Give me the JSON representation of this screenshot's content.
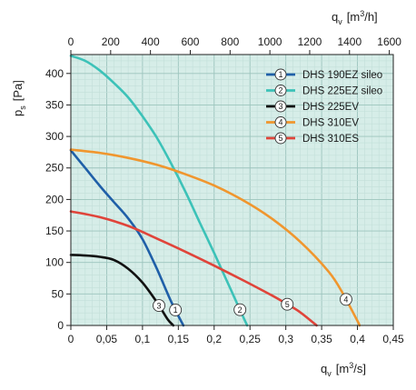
{
  "chart_data": {
    "type": "line",
    "x": {
      "label_main": "q",
      "label_sub": "v",
      "label_unit_pre": "[m",
      "label_unit_sup": "3",
      "label_unit_post": "/s]",
      "range": [
        0,
        0.45
      ],
      "ticks": [
        "0",
        "0,05",
        "0,1",
        "0,15",
        "0,2",
        "0,25",
        "0,3",
        "0,35",
        "0,4",
        "0,45"
      ]
    },
    "x_top": {
      "label_main": "q",
      "label_sub": "v",
      "label_unit_pre": "[m",
      "label_unit_sup": "3",
      "label_unit_post": "/h]",
      "range": [
        0,
        1620
      ],
      "ticks": [
        "0",
        "200",
        "400",
        "600",
        "800",
        "1000",
        "1200",
        "1400",
        "1600"
      ]
    },
    "y": {
      "label_main": "p",
      "label_sub": "s",
      "label_unit": "[Pa]",
      "range": [
        0,
        430
      ],
      "ticks": [
        "0",
        "50",
        "100",
        "150",
        "200",
        "250",
        "300",
        "350",
        "400"
      ]
    },
    "grid": true,
    "legend_position": "top-right",
    "background_color": "#d6ede8",
    "series": [
      {
        "id": "1",
        "name": "DHS 190EZ sileo",
        "color": "#1f5fa8",
        "marker_at": 0.146,
        "points": [
          [
            0,
            278
          ],
          [
            0.02,
            250
          ],
          [
            0.04,
            222
          ],
          [
            0.06,
            196
          ],
          [
            0.08,
            170
          ],
          [
            0.1,
            137
          ],
          [
            0.12,
            90
          ],
          [
            0.14,
            38
          ],
          [
            0.157,
            0
          ]
        ]
      },
      {
        "id": "2",
        "name": "DHS 225EZ sileo",
        "color": "#3cc2b8",
        "marker_at": 0.236,
        "points": [
          [
            0,
            428
          ],
          [
            0.02,
            420
          ],
          [
            0.04,
            405
          ],
          [
            0.06,
            385
          ],
          [
            0.08,
            362
          ],
          [
            0.1,
            332
          ],
          [
            0.12,
            298
          ],
          [
            0.14,
            257
          ],
          [
            0.16,
            212
          ],
          [
            0.18,
            163
          ],
          [
            0.2,
            115
          ],
          [
            0.22,
            65
          ],
          [
            0.24,
            15
          ],
          [
            0.246,
            0
          ]
        ]
      },
      {
        "id": "3",
        "name": "DHS 225EV",
        "color": "#111111",
        "marker_at": 0.123,
        "points": [
          [
            0,
            112
          ],
          [
            0.02,
            111
          ],
          [
            0.04,
            109
          ],
          [
            0.06,
            104
          ],
          [
            0.08,
            90
          ],
          [
            0.1,
            68
          ],
          [
            0.12,
            37
          ],
          [
            0.135,
            10
          ],
          [
            0.143,
            0
          ]
        ]
      },
      {
        "id": "4",
        "name": "DHS 310EV",
        "color": "#f0962e",
        "marker_at": 0.384,
        "points": [
          [
            0,
            279
          ],
          [
            0.04,
            274
          ],
          [
            0.08,
            266
          ],
          [
            0.12,
            255
          ],
          [
            0.16,
            240
          ],
          [
            0.2,
            222
          ],
          [
            0.24,
            199
          ],
          [
            0.28,
            170
          ],
          [
            0.32,
            133
          ],
          [
            0.36,
            85
          ],
          [
            0.38,
            50
          ],
          [
            0.4,
            7
          ],
          [
            0.403,
            0
          ]
        ]
      },
      {
        "id": "5",
        "name": "DHS 310ES",
        "color": "#e0443a",
        "marker_at": 0.302,
        "points": [
          [
            0,
            181
          ],
          [
            0.04,
            172
          ],
          [
            0.08,
            158
          ],
          [
            0.12,
            138
          ],
          [
            0.16,
            117
          ],
          [
            0.2,
            95
          ],
          [
            0.24,
            72
          ],
          [
            0.28,
            48
          ],
          [
            0.3,
            35
          ],
          [
            0.32,
            21
          ],
          [
            0.343,
            0
          ]
        ]
      }
    ]
  }
}
